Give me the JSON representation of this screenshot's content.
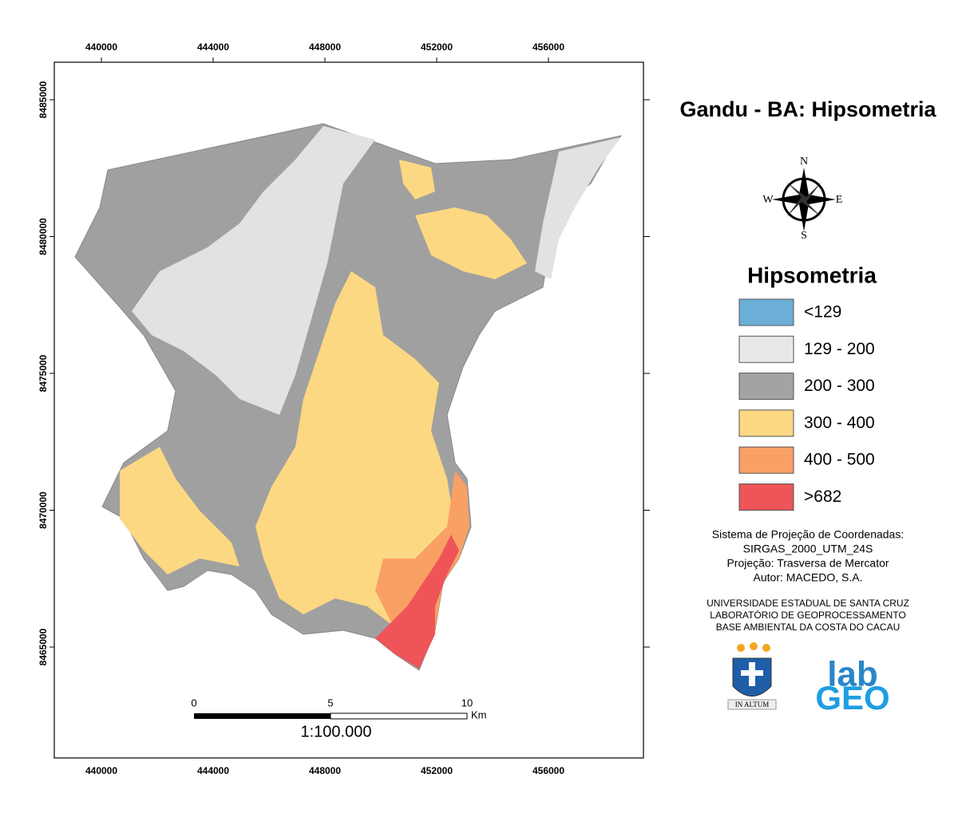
{
  "map": {
    "title": "Gandu - BA: Hipsometria",
    "xticks": [
      440000,
      444000,
      448000,
      452000,
      456000
    ],
    "yticks": [
      8485000,
      8480000,
      8475000,
      8470000,
      8465000
    ],
    "compass": {
      "n": "N",
      "e": "E",
      "s": "S",
      "w": "W"
    },
    "legend": {
      "title": "Hipsometria",
      "items": [
        {
          "label": "<129",
          "color": "#6baed6"
        },
        {
          "label": "129 - 200",
          "color": "#e8e8e8"
        },
        {
          "label": "200 - 300",
          "color": "#a3a3a3"
        },
        {
          "label": "300 - 400",
          "color": "#fdd882"
        },
        {
          "label": "400 - 500",
          "color": "#f9a064"
        },
        {
          "label": ">682",
          "color": "#ee5458"
        }
      ]
    },
    "projection": [
      "Sistema de Projeção de Coordenadas:",
      "SIRGAS_2000_UTM_24S",
      "Projeção: Trasversa de Mercator",
      "Autor: MACEDO, S.A."
    ],
    "institution": [
      "UNIVERSIDADE ESTADUAL DE SANTA CRUZ",
      "LABORATÓRIO DE GEOPROCESSAMENTO",
      "BASE AMBIENTAL DA COSTA DO CACAU"
    ],
    "scalebar": {
      "ticks": [
        "0",
        "5",
        "10"
      ],
      "unit": "Km",
      "ratio": "1:100.000"
    },
    "logos": {
      "motto": "IN ALTUM",
      "lab": "lab",
      "geo": "GEO"
    }
  }
}
